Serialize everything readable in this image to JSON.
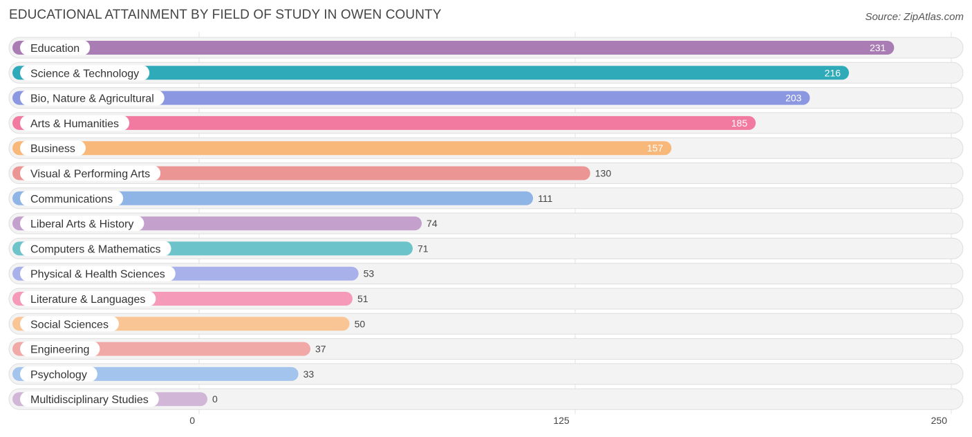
{
  "chart_data": {
    "type": "bar",
    "orientation": "horizontal",
    "title": "EDUCATIONAL ATTAINMENT BY FIELD OF STUDY IN OWEN COUNTY",
    "source": "Source: ZipAtlas.com",
    "xlim": [
      0,
      250
    ],
    "ticks": [
      0,
      125,
      250
    ],
    "categories": [
      "Education",
      "Science & Technology",
      "Bio, Nature & Agricultural",
      "Arts & Humanities",
      "Business",
      "Visual & Performing Arts",
      "Communications",
      "Liberal Arts & History",
      "Computers & Mathematics",
      "Physical & Health Sciences",
      "Literature & Languages",
      "Social Sciences",
      "Engineering",
      "Psychology",
      "Multidisciplinary Studies"
    ],
    "values": [
      231,
      216,
      203,
      185,
      157,
      130,
      111,
      74,
      71,
      53,
      51,
      50,
      37,
      33,
      0
    ],
    "colors": [
      "#a97cb3",
      "#2eaab8",
      "#8b97e0",
      "#f27aa0",
      "#f8b87a",
      "#ec9595",
      "#8fb5e6",
      "#c4a0cc",
      "#6cc3c9",
      "#a9b1ea",
      "#f59ab8",
      "#f9c594",
      "#f0a9a6",
      "#a3c4ec",
      "#d2b6d8"
    ]
  }
}
